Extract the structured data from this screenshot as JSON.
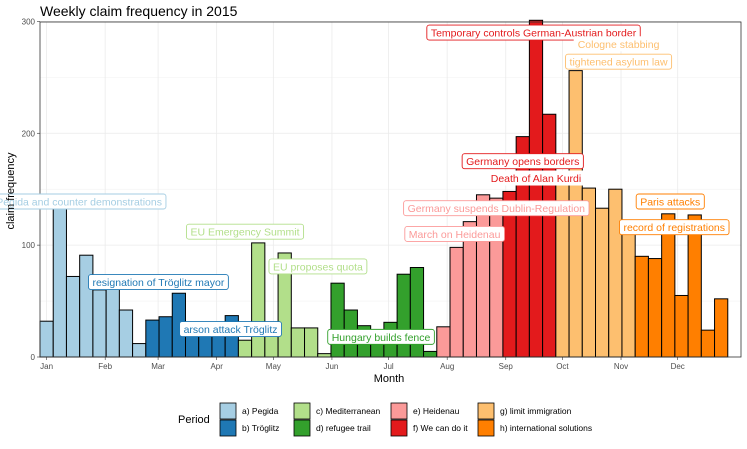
{
  "chart_data": {
    "type": "bar",
    "title": "Weekly claim frequency in 2015",
    "xlabel": "Month",
    "ylabel": "claim frequency",
    "ylim": [
      0,
      300
    ],
    "yticks": [
      0,
      100,
      200,
      300
    ],
    "months": [
      "Jan",
      "Feb",
      "Mar",
      "Apr",
      "May",
      "Jun",
      "Jul",
      "Aug",
      "Sep",
      "Oct",
      "Nov",
      "Dec"
    ],
    "legend": {
      "title": "Period",
      "position": "bottom",
      "entries": [
        {
          "label": "a) Pegida",
          "color": "#a6cee3"
        },
        {
          "label": "b) Tröglitz",
          "color": "#1f78b4"
        },
        {
          "label": "c) Mediterranean",
          "color": "#b2df8a"
        },
        {
          "label": "d) refugee trail",
          "color": "#33a02c"
        },
        {
          "label": "e) Heidenau",
          "color": "#fb9a99"
        },
        {
          "label": "f) We can do it",
          "color": "#e31a1c"
        },
        {
          "label": "g) limit immigration",
          "color": "#fdbf6f"
        },
        {
          "label": "h) international solutions",
          "color": "#ff7f00"
        }
      ]
    },
    "series": [
      {
        "name": "a) Pegida",
        "weeks": [
          1,
          2,
          3,
          4,
          5,
          6,
          7,
          8
        ],
        "values": [
          32,
          133,
          72,
          91,
          60,
          63,
          42,
          12
        ]
      },
      {
        "name": "b) Tröglitz",
        "weeks": [
          9,
          10,
          11,
          12,
          13,
          14,
          15
        ],
        "values": [
          33,
          36,
          57,
          23,
          22,
          22,
          37
        ]
      },
      {
        "name": "c) Mediterranean",
        "weeks": [
          16,
          17,
          18,
          19,
          20,
          21,
          22
        ],
        "values": [
          15,
          102,
          25,
          93,
          26,
          26,
          3
        ]
      },
      {
        "name": "d) refugee trail",
        "weeks": [
          23,
          24,
          25,
          26,
          27,
          28,
          29,
          30
        ],
        "values": [
          66,
          42,
          28,
          15,
          31,
          74,
          80,
          5
        ]
      },
      {
        "name": "e) Heidenau",
        "weeks": [
          31,
          32,
          33,
          34,
          35
        ],
        "values": [
          27,
          98,
          121,
          145,
          142
        ]
      },
      {
        "name": "f) We can do it",
        "weeks": [
          36,
          37,
          38,
          39
        ],
        "values": [
          148,
          197,
          301,
          217
        ]
      },
      {
        "name": "g) limit immigration",
        "weeks": [
          40,
          41,
          42,
          43,
          44,
          45
        ],
        "values": [
          155,
          256,
          151,
          133,
          150,
          118
        ]
      },
      {
        "name": "h) international solutions",
        "weeks": [
          46,
          47,
          48,
          49,
          50,
          51,
          52,
          53
        ],
        "values": [
          90,
          88,
          128,
          55,
          127,
          24,
          52,
          0
        ]
      }
    ],
    "annotations": [
      {
        "text": "Pegida and counter demonstrations",
        "period": 0,
        "week": 3,
        "value": 139,
        "style": "outline"
      },
      {
        "text": "resignation of Tröglitz mayor",
        "period": 1,
        "week": 9,
        "value": 67,
        "style": "outline"
      },
      {
        "text": "arson attack Tröglitz",
        "period": 1,
        "week": 14,
        "value": 25,
        "style": "outline"
      },
      {
        "text": "EU Emergency Summit",
        "period": 2,
        "week": 16,
        "value": 112,
        "style": "outline"
      },
      {
        "text": "EU proposes quota",
        "period": 2,
        "week": 20,
        "value": 81,
        "style": "outline"
      },
      {
        "text": "Hungary builds fence",
        "period": 3,
        "week": 25,
        "value": 18,
        "style": "outline"
      },
      {
        "text": "March on Heidenau",
        "period": 4,
        "week": 32,
        "value": 110,
        "style": "outline"
      },
      {
        "text": "Germany suspends Dublin-Regulation",
        "period": 4,
        "week": 35,
        "value": 133,
        "style": "outline"
      },
      {
        "text": "Germany opens borders",
        "period": 5,
        "week": 37,
        "value": 175,
        "style": "outline"
      },
      {
        "text": "Death of Alan Kurdi",
        "period": 5,
        "week": 38,
        "value": 160,
        "style": "plain"
      },
      {
        "text": "Temporary controls German-Austrian border",
        "period": 5,
        "week": 36,
        "value": 290,
        "style": "outline"
      },
      {
        "text": "Cologne stabbing",
        "period": 6,
        "week": 45,
        "value": 280,
        "style": "plain"
      },
      {
        "text": "tightened asylum law",
        "period": 6,
        "week": 45,
        "value": 264,
        "style": "outline"
      },
      {
        "text": "Paris attacks",
        "period": 7,
        "week": 48,
        "value": 139,
        "style": "outline"
      },
      {
        "text": "record of registrations",
        "period": 7,
        "week": 48,
        "value": 116,
        "style": "outline"
      }
    ]
  }
}
